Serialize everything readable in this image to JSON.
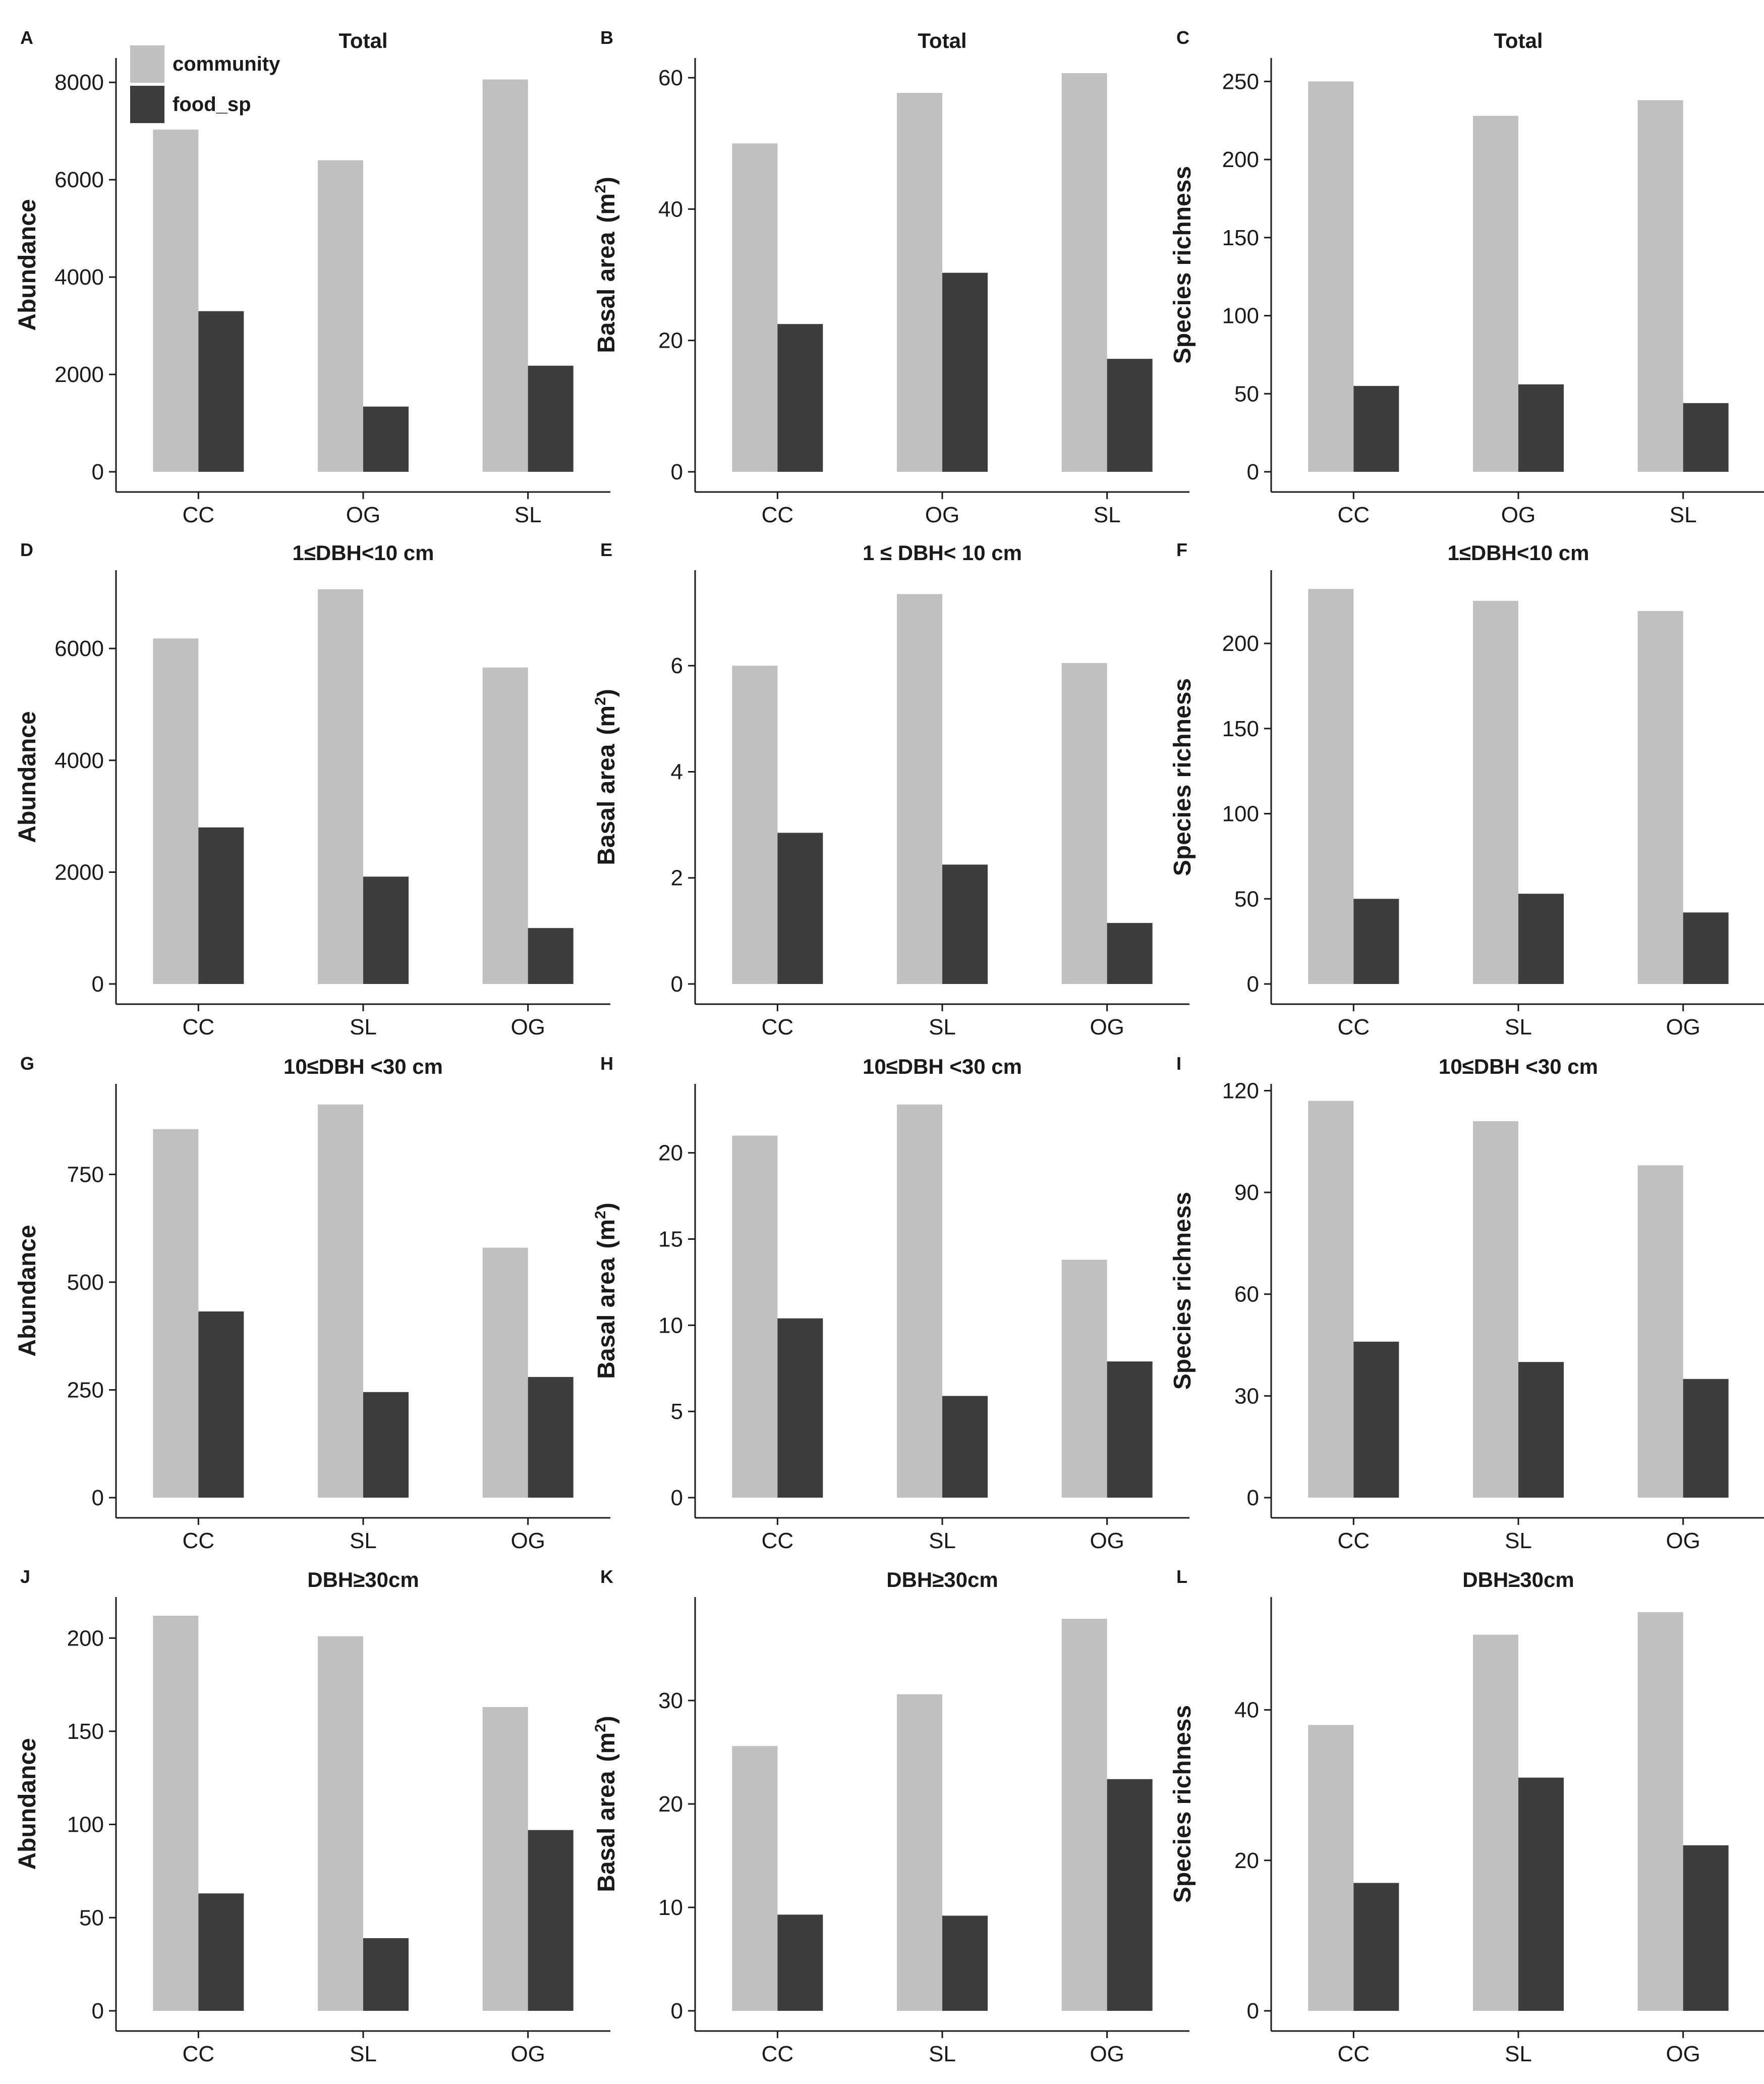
{
  "legend": {
    "items": [
      {
        "label": "community",
        "color": "#c0c0c0"
      },
      {
        "label": "food_sp",
        "color": "#3d3d3d"
      }
    ]
  },
  "chart_data": [
    {
      "letter": "A",
      "type": "bar",
      "title": "Total",
      "ylabel": "Abundance",
      "yunit": "",
      "categories": [
        "CC",
        "OG",
        "SL"
      ],
      "ylim": [
        0,
        8500
      ],
      "yticks": [
        0,
        2000,
        4000,
        6000,
        8000
      ],
      "series": [
        {
          "name": "community",
          "values": [
            7030,
            6400,
            8060
          ]
        },
        {
          "name": "food_sp",
          "values": [
            3300,
            1340,
            2180
          ]
        }
      ]
    },
    {
      "letter": "B",
      "type": "bar",
      "title": "Total",
      "ylabel": "Basal area",
      "yunit": "(m",
      "categories": [
        "CC",
        "OG",
        "SL"
      ],
      "ylim": [
        0,
        63
      ],
      "yticks": [
        0,
        20,
        40,
        60
      ],
      "series": [
        {
          "name": "community",
          "values": [
            50,
            57.7,
            60.7
          ]
        },
        {
          "name": "food_sp",
          "values": [
            22.5,
            30.3,
            17.2
          ]
        }
      ]
    },
    {
      "letter": "C",
      "type": "bar",
      "title": "Total",
      "ylabel": "Species richness",
      "yunit": "",
      "categories": [
        "CC",
        "OG",
        "SL"
      ],
      "ylim": [
        0,
        265
      ],
      "yticks": [
        0,
        50,
        100,
        150,
        200,
        250
      ],
      "series": [
        {
          "name": "community",
          "values": [
            250,
            228,
            238
          ]
        },
        {
          "name": "food_sp",
          "values": [
            55,
            56,
            44
          ]
        }
      ]
    },
    {
      "letter": "D",
      "type": "bar",
      "title": "1≤DBH<10 cm",
      "ylabel": "Abundance",
      "yunit": "",
      "categories": [
        "CC",
        "SL",
        "OG"
      ],
      "ylim": [
        0,
        7400
      ],
      "yticks": [
        0,
        2000,
        4000,
        6000
      ],
      "series": [
        {
          "name": "community",
          "values": [
            6180,
            7060,
            5660
          ]
        },
        {
          "name": "food_sp",
          "values": [
            2800,
            1920,
            1000
          ]
        }
      ]
    },
    {
      "letter": "E",
      "type": "bar",
      "title": "1 ≤ DBH< 10 cm",
      "ylabel": "Basal area",
      "yunit": "(m",
      "categories": [
        "CC",
        "SL",
        "OG"
      ],
      "ylim": [
        0,
        7.8
      ],
      "yticks": [
        0,
        2,
        4,
        6
      ],
      "series": [
        {
          "name": "community",
          "values": [
            6.0,
            7.35,
            6.05
          ]
        },
        {
          "name": "food_sp",
          "values": [
            2.85,
            2.25,
            1.15
          ]
        }
      ]
    },
    {
      "letter": "F",
      "type": "bar",
      "title": "1≤DBH<10 cm",
      "ylabel": "Species richness",
      "yunit": "",
      "categories": [
        "CC",
        "SL",
        "OG"
      ],
      "ylim": [
        0,
        243
      ],
      "yticks": [
        0,
        50,
        100,
        150,
        200
      ],
      "series": [
        {
          "name": "community",
          "values": [
            232,
            225,
            219
          ]
        },
        {
          "name": "food_sp",
          "values": [
            50,
            53,
            42
          ]
        }
      ]
    },
    {
      "letter": "G",
      "type": "bar",
      "title": "10≤DBH <30 cm",
      "ylabel": "Abundance",
      "yunit": "",
      "categories": [
        "CC",
        "SL",
        "OG"
      ],
      "ylim": [
        0,
        960
      ],
      "yticks": [
        0,
        250,
        500,
        750
      ],
      "series": [
        {
          "name": "community",
          "values": [
            855,
            912,
            580
          ]
        },
        {
          "name": "food_sp",
          "values": [
            432,
            245,
            280
          ]
        }
      ]
    },
    {
      "letter": "H",
      "type": "bar",
      "title": "10≤DBH <30 cm",
      "ylabel": "Basal area",
      "yunit": "(m",
      "categories": [
        "CC",
        "SL",
        "OG"
      ],
      "ylim": [
        0,
        24
      ],
      "yticks": [
        0,
        5,
        10,
        15,
        20
      ],
      "series": [
        {
          "name": "community",
          "values": [
            21.0,
            22.8,
            13.8
          ]
        },
        {
          "name": "food_sp",
          "values": [
            10.4,
            5.9,
            7.9
          ]
        }
      ]
    },
    {
      "letter": "I",
      "type": "bar",
      "title": "10≤DBH <30 cm",
      "ylabel": "Species richness",
      "yunit": "",
      "categories": [
        "CC",
        "SL",
        "OG"
      ],
      "ylim": [
        0,
        122
      ],
      "yticks": [
        0,
        30,
        60,
        90,
        120
      ],
      "series": [
        {
          "name": "community",
          "values": [
            117,
            111,
            98
          ]
        },
        {
          "name": "food_sp",
          "values": [
            46,
            40,
            35
          ]
        }
      ]
    },
    {
      "letter": "J",
      "type": "bar",
      "title": "DBH≥30cm",
      "ylabel": "Abundance",
      "yunit": "",
      "categories": [
        "CC",
        "SL",
        "OG"
      ],
      "ylim": [
        0,
        222
      ],
      "yticks": [
        0,
        50,
        100,
        150,
        200
      ],
      "series": [
        {
          "name": "community",
          "values": [
            212,
            201,
            163
          ]
        },
        {
          "name": "food_sp",
          "values": [
            63,
            39,
            97
          ]
        }
      ]
    },
    {
      "letter": "K",
      "type": "bar",
      "title": "DBH≥30cm",
      "ylabel": "Basal area",
      "yunit": "(m",
      "categories": [
        "CC",
        "SL",
        "OG"
      ],
      "ylim": [
        0,
        40
      ],
      "yticks": [
        0,
        10,
        20,
        30
      ],
      "series": [
        {
          "name": "community",
          "values": [
            25.6,
            30.6,
            37.9
          ]
        },
        {
          "name": "food_sp",
          "values": [
            9.3,
            9.2,
            22.4
          ]
        }
      ]
    },
    {
      "letter": "L",
      "type": "bar",
      "title": "DBH≥30cm",
      "ylabel": "Species richness",
      "yunit": "",
      "categories": [
        "CC",
        "SL",
        "OG"
      ],
      "ylim": [
        0,
        55
      ],
      "yticks": [
        0,
        20,
        40
      ],
      "series": [
        {
          "name": "community",
          "values": [
            38,
            50,
            53
          ]
        },
        {
          "name": "food_sp",
          "values": [
            17,
            31,
            22
          ]
        }
      ]
    }
  ]
}
